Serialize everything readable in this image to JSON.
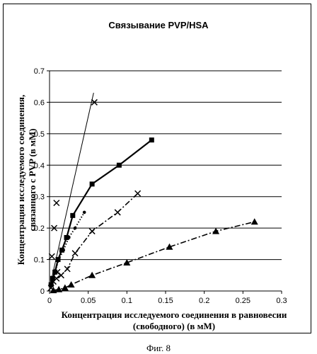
{
  "chart_data": {
    "type": "line",
    "title": "Связывание PVP/HSA",
    "xlabel": [
      "Концентрация исследуемого соединения в равновесии",
      "(свободного) (в мМ)"
    ],
    "ylabel": [
      "Концентрация исследуемого соединения,",
      "связанного с PVP (в мМ)"
    ],
    "xlim": [
      0,
      0.3
    ],
    "ylim": [
      0,
      0.7
    ],
    "xticks": [
      0,
      0.05,
      0.1,
      0.15,
      0.2,
      0.25,
      0.3
    ],
    "xtick_labels": [
      "0",
      "0.05",
      "0.1",
      "0.15",
      "0.2",
      "0.25",
      "0.3"
    ],
    "yticks": [
      0,
      0.1,
      0.2,
      0.3,
      0.4,
      0.5,
      0.6,
      0.7
    ],
    "ytick_labels": [
      "0",
      "0.1",
      "0.2",
      "0.3",
      "0.4",
      "0.5",
      "0.6",
      "0.7"
    ],
    "grid": "horizontal",
    "series": [
      {
        "marker": "x",
        "line": "thin-solid",
        "x": [
          0.003,
          0.006,
          0.009,
          0.01,
          0.058
        ],
        "y": [
          0.11,
          0.2,
          0.28,
          0.06,
          0.6
        ],
        "fit_line": [
          [
            0,
            0.01
          ],
          [
            0.057,
            0.63
          ]
        ]
      },
      {
        "marker": "square",
        "line": "thick-solid",
        "x": [
          0.002,
          0.004,
          0.007,
          0.011,
          0.016,
          0.022,
          0.03,
          0.055,
          0.09,
          0.132
        ],
        "y": [
          0.02,
          0.04,
          0.06,
          0.1,
          0.13,
          0.17,
          0.24,
          0.34,
          0.4,
          0.48
        ]
      },
      {
        "marker": "dot",
        "line": "dotted",
        "x": [
          0.003,
          0.007,
          0.012,
          0.018,
          0.025,
          0.033,
          0.045
        ],
        "y": [
          0.03,
          0.06,
          0.1,
          0.13,
          0.17,
          0.2,
          0.25
        ]
      },
      {
        "marker": "x",
        "line": "dash-dot",
        "x": [
          0.002,
          0.005,
          0.009,
          0.015,
          0.023,
          0.033,
          0.055,
          0.088,
          0.114
        ],
        "y": [
          0.01,
          0.03,
          0.04,
          0.05,
          0.07,
          0.12,
          0.19,
          0.25,
          0.31
        ]
      },
      {
        "marker": "triangle",
        "line": "dash-dot",
        "x": [
          0.005,
          0.012,
          0.02,
          0.028,
          0.055,
          0.1,
          0.155,
          0.215,
          0.265
        ],
        "y": [
          0.002,
          0.005,
          0.01,
          0.02,
          0.05,
          0.09,
          0.14,
          0.19,
          0.22
        ]
      }
    ]
  },
  "figure_caption": "Фиг. 8"
}
